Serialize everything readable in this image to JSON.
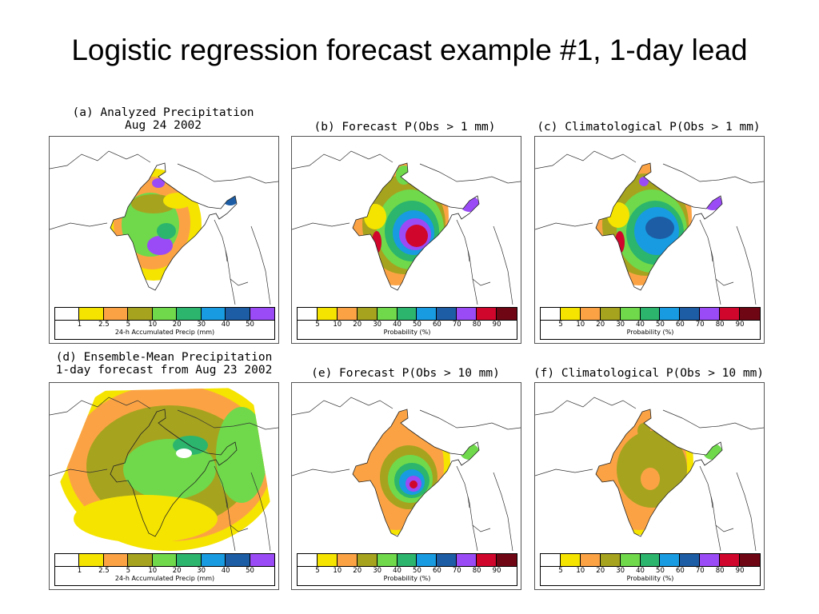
{
  "title": "Logistic regression forecast example #1, 1-day lead",
  "panels": [
    {
      "id": "a",
      "title_lines": [
        "(a) Analyzed Precipitation",
        "Aug 24 2002"
      ],
      "colorbar": {
        "labels": [
          "1",
          "2.5",
          "5",
          "10",
          "20",
          "30",
          "40",
          "50"
        ],
        "label": "24-h Accumulated Precip (mm)",
        "colors": [
          "#ffffff",
          "#f5e400",
          "#fba344",
          "#a6a31f",
          "#6fd94b",
          "#2bb56d",
          "#189be0",
          "#1c5da5",
          "#9a4bf5"
        ]
      }
    },
    {
      "id": "b",
      "title_lines": [
        "(b) Forecast P(Obs > 1 mm)"
      ],
      "colorbar": {
        "labels": [
          "5",
          "10",
          "20",
          "30",
          "40",
          "50",
          "60",
          "70",
          "80",
          "90"
        ],
        "label": "Probability (%)",
        "colors": [
          "#ffffff",
          "#f5e400",
          "#fba344",
          "#a6a31f",
          "#6fd94b",
          "#2bb56d",
          "#189be0",
          "#1c5da5",
          "#9a4bf5",
          "#d0062c",
          "#6e0614"
        ]
      }
    },
    {
      "id": "c",
      "title_lines": [
        "(c) Climatological P(Obs > 1 mm)"
      ],
      "colorbar": {
        "labels": [
          "5",
          "10",
          "20",
          "30",
          "40",
          "50",
          "60",
          "70",
          "80",
          "90"
        ],
        "label": "Probability (%)",
        "colors": [
          "#ffffff",
          "#f5e400",
          "#fba344",
          "#a6a31f",
          "#6fd94b",
          "#2bb56d",
          "#189be0",
          "#1c5da5",
          "#9a4bf5",
          "#d0062c",
          "#6e0614"
        ]
      }
    },
    {
      "id": "d",
      "title_lines": [
        "(d) Ensemble-Mean Precipitation",
        "1-day forecast from Aug 23 2002"
      ],
      "colorbar": {
        "labels": [
          "1",
          "2.5",
          "5",
          "10",
          "20",
          "30",
          "40",
          "50"
        ],
        "label": "24-h Accumulated Precip (mm)",
        "colors": [
          "#ffffff",
          "#f5e400",
          "#fba344",
          "#a6a31f",
          "#6fd94b",
          "#2bb56d",
          "#189be0",
          "#1c5da5",
          "#9a4bf5"
        ]
      }
    },
    {
      "id": "e",
      "title_lines": [
        "(e) Forecast P(Obs > 10 mm)"
      ],
      "colorbar": {
        "labels": [
          "5",
          "10",
          "20",
          "30",
          "40",
          "50",
          "60",
          "70",
          "80",
          "90"
        ],
        "label": "Probability (%)",
        "colors": [
          "#ffffff",
          "#f5e400",
          "#fba344",
          "#a6a31f",
          "#6fd94b",
          "#2bb56d",
          "#189be0",
          "#1c5da5",
          "#9a4bf5",
          "#d0062c",
          "#6e0614"
        ]
      }
    },
    {
      "id": "f",
      "title_lines": [
        "(f) Climatological P(Obs > 10 mm)"
      ],
      "colorbar": {
        "labels": [
          "5",
          "10",
          "20",
          "30",
          "40",
          "50",
          "60",
          "70",
          "80",
          "90"
        ],
        "label": "Probability (%)",
        "colors": [
          "#ffffff",
          "#f5e400",
          "#fba344",
          "#a6a31f",
          "#6fd94b",
          "#2bb56d",
          "#189be0",
          "#1c5da5",
          "#9a4bf5",
          "#d0062c",
          "#6e0614"
        ]
      }
    }
  ]
}
